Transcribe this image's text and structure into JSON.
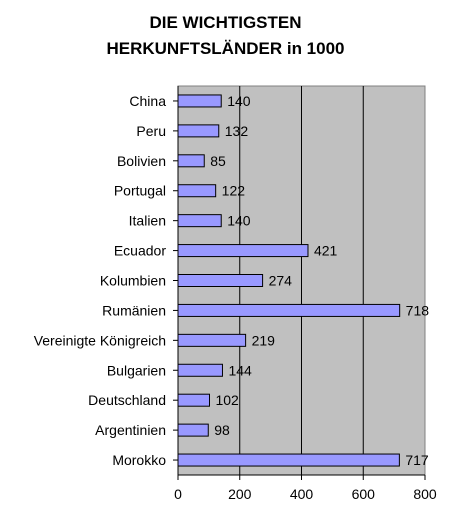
{
  "chart_data": {
    "type": "bar",
    "orientation": "horizontal",
    "title_lines": [
      "DIE WICHTIGSTEN",
      "HERKUNFTSLÄNDER in 1000"
    ],
    "categories": [
      "China",
      "Peru",
      "Bolivien",
      "Portugal",
      "Italien",
      "Ecuador",
      "Kolumbien",
      "Rumänien",
      "Vereinigte Königreich",
      "Bulgarien",
      "Deutschland",
      "Argentinien",
      "Morokko"
    ],
    "values": [
      140,
      132,
      85,
      122,
      140,
      421,
      274,
      718,
      219,
      144,
      102,
      98,
      717
    ],
    "xlim": [
      0,
      800
    ],
    "xticks": [
      0,
      200,
      400,
      600,
      800
    ],
    "grid": "vertical",
    "colors": {
      "bar_fill": "#9999ff",
      "bar_stroke": "#000000",
      "plot_background": "#c0c0c0",
      "gridline": "#000000"
    }
  }
}
